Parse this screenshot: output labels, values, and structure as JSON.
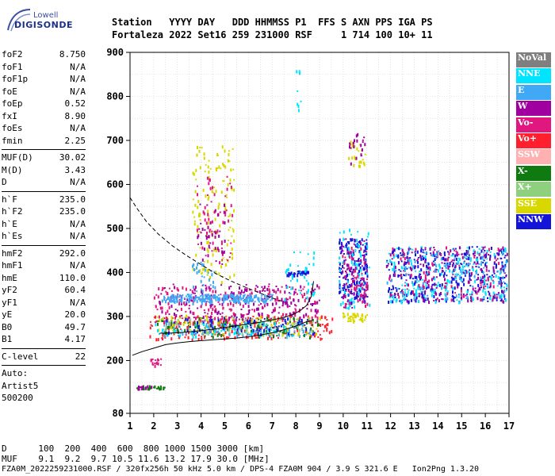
{
  "logo": {
    "line1": "Lowell",
    "line2": "DIGISONDE"
  },
  "header": {
    "row1": "Station   YYYY DAY   DDD HHMMSS P1  FFS S AXN PPS IGA PS",
    "row2": "Fortaleza 2022 Set16 259 231000 RSF     1 714 100 10+ 11"
  },
  "params": [
    [
      {
        "k": "foF2",
        "v": "8.750"
      },
      {
        "k": "foF1",
        "v": "N/A"
      },
      {
        "k": "foF1p",
        "v": "N/A"
      },
      {
        "k": "foE",
        "v": "N/A"
      },
      {
        "k": "foEp",
        "v": "0.52"
      },
      {
        "k": "fxI",
        "v": "8.90"
      },
      {
        "k": "foEs",
        "v": "N/A"
      },
      {
        "k": "fmin",
        "v": "2.25"
      }
    ],
    [
      {
        "k": "MUF(D)",
        "v": "30.02"
      },
      {
        "k": "M(D)",
        "v": "3.43"
      },
      {
        "k": "D",
        "v": "N/A"
      }
    ],
    [
      {
        "k": "h`F",
        "v": "235.0"
      },
      {
        "k": "h`F2",
        "v": "235.0"
      },
      {
        "k": "h`E",
        "v": "N/A"
      },
      {
        "k": "h`Es",
        "v": "N/A"
      }
    ],
    [
      {
        "k": "hmF2",
        "v": "292.0"
      },
      {
        "k": "hmF1",
        "v": "N/A"
      },
      {
        "k": "hmE",
        "v": "110.0"
      },
      {
        "k": "yF2",
        "v": "60.4"
      },
      {
        "k": "yF1",
        "v": "N/A"
      },
      {
        "k": "yE",
        "v": "20.0"
      },
      {
        "k": "B0",
        "v": "49.7"
      },
      {
        "k": "B1",
        "v": "4.17"
      }
    ],
    [
      {
        "k": "C-level",
        "v": "22"
      }
    ],
    [
      {
        "k": "Auto:",
        "v": ""
      },
      {
        "k": "Artist5",
        "v": ""
      },
      {
        "k": "500200",
        "v": ""
      }
    ]
  ],
  "legend": [
    {
      "label": "NoVal",
      "color": "#7f7f7f"
    },
    {
      "label": "NNE",
      "color": "#00e5ff"
    },
    {
      "label": "E",
      "color": "#3fa9f5"
    },
    {
      "label": "W",
      "color": "#a0009f"
    },
    {
      "label": "Vo-",
      "color": "#e0177f"
    },
    {
      "label": "Vo+",
      "color": "#ff1f2f"
    },
    {
      "label": "SSW",
      "color": "#ffb0b0"
    },
    {
      "label": "X-",
      "color": "#0f7a0f"
    },
    {
      "label": "X+",
      "color": "#8fd07f"
    },
    {
      "label": "SSE",
      "color": "#d8d800"
    },
    {
      "label": "NNW",
      "color": "#1414d8"
    }
  ],
  "footer": {
    "d_row": "D      100  200  400  600  800 1000 1500 3000 [km]",
    "muf_row": "MUF    9.1  9.2  9.7 10.5 11.6 13.2 17.9 30.0 [MHz]",
    "file_row": "FZA0M_2022259231000.RSF / 320fx256h 50 kHz 5.0 km / DPS-4 FZA0M 904 / 3.9 S 321.6 E   Ion2Png 1.3.20"
  },
  "chart_data": {
    "type": "scatter",
    "xlim": [
      1,
      17
    ],
    "ylim": [
      80,
      900
    ],
    "xticks": [
      1,
      2,
      3,
      4,
      5,
      6,
      7,
      8,
      9,
      10,
      11,
      12,
      13,
      14,
      15,
      16,
      17
    ],
    "yticks": [
      80,
      200,
      300,
      400,
      500,
      600,
      700,
      800,
      900
    ],
    "grid": true,
    "trace_profile": {
      "x": [
        1.1,
        1.5,
        2.0,
        2.5,
        3.0,
        3.5,
        4.0,
        4.5,
        5.0,
        5.5,
        6.0,
        6.5,
        7.0,
        7.5,
        8.0,
        8.4,
        8.75
      ],
      "y": [
        212,
        220,
        228,
        236,
        240,
        243,
        245,
        247,
        249,
        251,
        254,
        258,
        263,
        270,
        278,
        287,
        292
      ]
    },
    "trace_virtual": {
      "x": [
        2.25,
        2.5,
        3.0,
        3.5,
        4.0,
        4.5,
        5.0,
        5.5,
        6.0,
        6.5,
        7.0,
        7.5,
        7.9,
        8.2,
        8.45,
        8.65,
        8.75
      ],
      "y": [
        262,
        262,
        263,
        265,
        268,
        271,
        275,
        279,
        283,
        287,
        292,
        298,
        305,
        314,
        325,
        345,
        380
      ]
    },
    "muf_curve": {
      "x": [
        1.0,
        1.3,
        1.7,
        2.2,
        2.8,
        3.4,
        4.0,
        4.6,
        5.2,
        5.8,
        6.4,
        7.0,
        7.5
      ],
      "y": [
        570,
        545,
        515,
        487,
        460,
        438,
        418,
        398,
        382,
        368,
        355,
        342,
        333
      ]
    },
    "echo_clusters": [
      {
        "color": "#ff1f2f",
        "xr": [
          1.8,
          9.6
        ],
        "yr": [
          250,
          305
        ],
        "n": 230
      },
      {
        "color": "#e0177f",
        "xr": [
          2.0,
          9.0
        ],
        "yr": [
          285,
          370
        ],
        "n": 230
      },
      {
        "color": "#a0009f",
        "xr": [
          2.2,
          9.0
        ],
        "yr": [
          290,
          375
        ],
        "n": 200
      },
      {
        "color": "#3fa9f5",
        "xr": [
          2.3,
          8.6
        ],
        "yr": [
          258,
          290
        ],
        "n": 140
      },
      {
        "color": "#0f7a0f",
        "xr": [
          2.0,
          9.0
        ],
        "yr": [
          255,
          300
        ],
        "n": 110
      },
      {
        "color": "#d8d800",
        "xr": [
          2.0,
          9.0
        ],
        "yr": [
          258,
          305
        ],
        "n": 90
      },
      {
        "color": "#8fd07f",
        "xr": [
          2.2,
          8.8
        ],
        "yr": [
          262,
          300
        ],
        "n": 70
      },
      {
        "color": "#00e5ff",
        "xr": [
          2.0,
          8.0
        ],
        "yr": [
          255,
          290
        ],
        "n": 70
      },
      {
        "color": "#1414d8",
        "xr": [
          2.4,
          8.8
        ],
        "yr": [
          262,
          300
        ],
        "n": 70
      },
      {
        "color": "#3fa9f5",
        "xr": [
          2.3,
          7.0
        ],
        "yr": [
          335,
          352
        ],
        "n": 220
      },
      {
        "color": "#d8d800",
        "xr": [
          3.6,
          5.4
        ],
        "yr": [
          380,
          690
        ],
        "n": 150
      },
      {
        "color": "#e0177f",
        "xr": [
          3.8,
          5.3
        ],
        "yr": [
          420,
          620
        ],
        "n": 60
      },
      {
        "color": "#a0009f",
        "xr": [
          3.8,
          5.0
        ],
        "yr": [
          420,
          560
        ],
        "n": 40
      },
      {
        "color": "#3fa9f5",
        "xr": [
          3.6,
          4.6
        ],
        "yr": [
          330,
          430
        ],
        "n": 40
      },
      {
        "color": "#1414d8",
        "xr": [
          7.6,
          8.5
        ],
        "yr": [
          395,
          405
        ],
        "n": 35
      },
      {
        "color": "#00e5ff",
        "xr": [
          7.5,
          8.8
        ],
        "yr": [
          330,
          450
        ],
        "n": 40
      },
      {
        "color": "#00e5ff",
        "xr": [
          8.0,
          8.2
        ],
        "yr": [
          760,
          860
        ],
        "n": 8
      },
      {
        "color": "#1414d8",
        "xr": [
          9.8,
          11.0
        ],
        "yr": [
          330,
          480
        ],
        "n": 150
      },
      {
        "color": "#00e5ff",
        "xr": [
          9.8,
          11.1
        ],
        "yr": [
          320,
          500
        ],
        "n": 80
      },
      {
        "color": "#a0009f",
        "xr": [
          9.9,
          11.0
        ],
        "yr": [
          320,
          480
        ],
        "n": 70
      },
      {
        "color": "#e0177f",
        "xr": [
          9.9,
          11.0
        ],
        "yr": [
          320,
          460
        ],
        "n": 60
      },
      {
        "color": "#d8d800",
        "xr": [
          9.9,
          11.0
        ],
        "yr": [
          290,
          310
        ],
        "n": 40
      },
      {
        "color": "#d8d800",
        "xr": [
          10.2,
          10.9
        ],
        "yr": [
          640,
          700
        ],
        "n": 25
      },
      {
        "color": "#a0009f",
        "xr": [
          10.2,
          10.9
        ],
        "yr": [
          650,
          720
        ],
        "n": 20
      },
      {
        "color": "#1414d8",
        "xr": [
          11.8,
          16.9
        ],
        "yr": [
          335,
          460
        ],
        "n": 330
      },
      {
        "color": "#00e5ff",
        "xr": [
          11.8,
          16.9
        ],
        "yr": [
          335,
          460
        ],
        "n": 230
      },
      {
        "color": "#a0009f",
        "xr": [
          11.8,
          16.9
        ],
        "yr": [
          335,
          460
        ],
        "n": 150
      },
      {
        "color": "#e0177f",
        "xr": [
          11.8,
          16.9
        ],
        "yr": [
          335,
          460
        ],
        "n": 100
      },
      {
        "color": "#3fa9f5",
        "xr": [
          11.8,
          16.9
        ],
        "yr": [
          340,
          450
        ],
        "n": 90
      },
      {
        "color": "#0f7a0f",
        "xr": [
          1.2,
          2.5
        ],
        "yr": [
          138,
          144
        ],
        "n": 25
      },
      {
        "color": "#a0009f",
        "xr": [
          1.2,
          2.0
        ],
        "yr": [
          138,
          144
        ],
        "n": 12
      },
      {
        "color": "#e0177f",
        "xr": [
          1.8,
          2.3
        ],
        "yr": [
          190,
          205
        ],
        "n": 18
      }
    ]
  }
}
